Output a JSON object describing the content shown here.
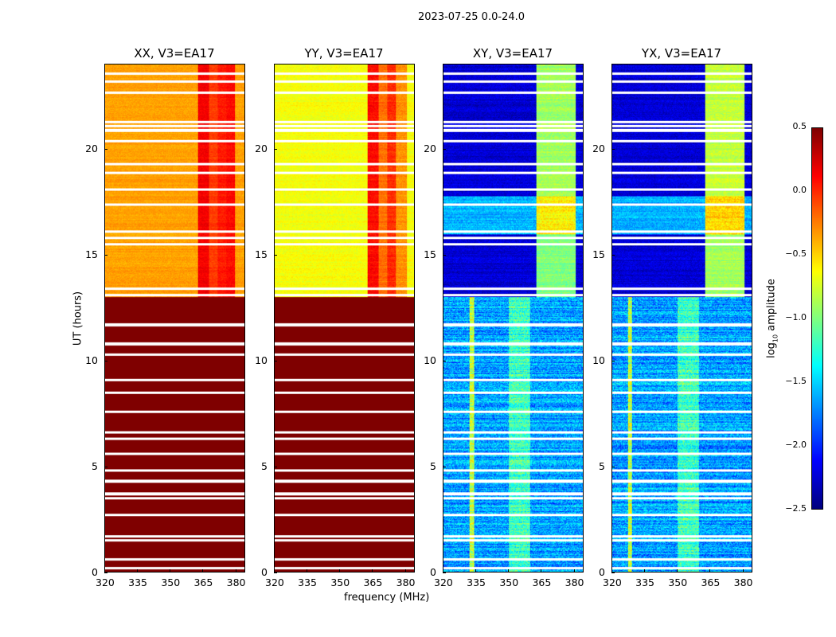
{
  "chart_data": {
    "type": "heatmap",
    "title": "2023-07-25 0.0-24.0",
    "xlabel": "frequency (MHz)",
    "ylabel": "UT (hours)",
    "xlim": [
      320,
      384.5
    ],
    "ylim": [
      0,
      24
    ],
    "xticks": [
      "320",
      "335",
      "350",
      "365",
      "380"
    ],
    "yticks": [
      "0",
      "5",
      "10",
      "15",
      "20"
    ],
    "colorbar": {
      "label": "log10 amplitude",
      "label_main": "log",
      "label_sub": "10",
      "label_tail": " amplitude",
      "range": [
        -2.5,
        0.5
      ],
      "ticks": [
        "0.5",
        "0.0",
        "−0.5",
        "−1.0",
        "−1.5",
        "−2.0",
        "−2.5"
      ],
      "colormap": "jet"
    },
    "flagged_rows_hours": [
      0.2,
      0.6,
      1.5,
      1.7,
      2.7,
      3.5,
      3.7,
      4.3,
      4.8,
      5.6,
      6.3,
      6.6,
      7.6,
      8.5,
      9.1,
      10.3,
      10.8,
      11.7,
      13.1,
      13.4,
      15.5,
      15.8,
      16.1,
      17.4,
      18.1,
      18.9,
      19.3,
      20.4,
      20.9,
      21.1,
      21.3,
      22.7,
      23.2,
      23.6
    ],
    "panels": [
      {
        "title": "XX, V3=EA17",
        "bands": [
          {
            "t": [
              0,
              13
            ],
            "base": 0.5,
            "noise": 0.0,
            "freq_boost": []
          },
          {
            "t": [
              13,
              24
            ],
            "base": -0.35,
            "noise": 0.08,
            "freq_boost": [
              {
                "f": [
                  363,
                  368
                ],
                "v": 0.15
              },
              {
                "f": [
                  368,
                  372
                ],
                "v": -0.05
              },
              {
                "f": [
                  372,
                  376
                ],
                "v": 0.05
              },
              {
                "f": [
                  376,
                  380
                ],
                "v": 0.1
              }
            ]
          }
        ]
      },
      {
        "title": "YY, V3=EA17",
        "bands": [
          {
            "t": [
              0,
              13
            ],
            "base": 0.5,
            "noise": 0.0,
            "freq_boost": []
          },
          {
            "t": [
              13,
              24
            ],
            "base": -0.65,
            "noise": 0.1,
            "freq_boost": [
              {
                "f": [
                  363,
                  368
                ],
                "v": 0.1
              },
              {
                "f": [
                  368,
                  372
                ],
                "v": -0.2
              },
              {
                "f": [
                  372,
                  376
                ],
                "v": 0.0
              },
              {
                "f": [
                  376,
                  381
                ],
                "v": -0.3
              }
            ]
          }
        ]
      },
      {
        "title": "XY, V3=EA17",
        "bands": [
          {
            "t": [
              0,
              13
            ],
            "base": -1.65,
            "noise": 0.35,
            "freq_boost": [
              {
                "f": [
                  332,
                  334
                ],
                "v": -0.8
              },
              {
                "f": [
                  350,
                  360
                ],
                "v": -1.2
              }
            ]
          },
          {
            "t": [
              13,
              16
            ],
            "base": -2.25,
            "noise": 0.15,
            "freq_boost": [
              {
                "f": [
                  363,
                  381
                ],
                "v": -1.0
              }
            ]
          },
          {
            "t": [
              16,
              17.8
            ],
            "base": -1.6,
            "noise": 0.2,
            "freq_boost": [
              {
                "f": [
                  363,
                  381
                ],
                "v": -0.6
              }
            ]
          },
          {
            "t": [
              17.8,
              24
            ],
            "base": -2.25,
            "noise": 0.15,
            "freq_boost": [
              {
                "f": [
                  363,
                  381
                ],
                "v": -0.9
              }
            ]
          }
        ]
      },
      {
        "title": "YX, V3=EA17",
        "bands": [
          {
            "t": [
              0,
              13
            ],
            "base": -1.65,
            "noise": 0.35,
            "freq_boost": [
              {
                "f": [
                  327,
                  329
                ],
                "v": -0.8
              },
              {
                "f": [
                  350,
                  360
                ],
                "v": -1.2
              }
            ]
          },
          {
            "t": [
              13,
              16
            ],
            "base": -2.25,
            "noise": 0.15,
            "freq_boost": [
              {
                "f": [
                  363,
                  381
                ],
                "v": -0.9
              }
            ]
          },
          {
            "t": [
              16,
              17.8
            ],
            "base": -1.6,
            "noise": 0.2,
            "freq_boost": [
              {
                "f": [
                  363,
                  381
                ],
                "v": -0.5
              }
            ]
          },
          {
            "t": [
              17.8,
              24
            ],
            "base": -2.25,
            "noise": 0.15,
            "freq_boost": [
              {
                "f": [
                  363,
                  381
                ],
                "v": -0.8
              }
            ]
          }
        ]
      }
    ]
  }
}
